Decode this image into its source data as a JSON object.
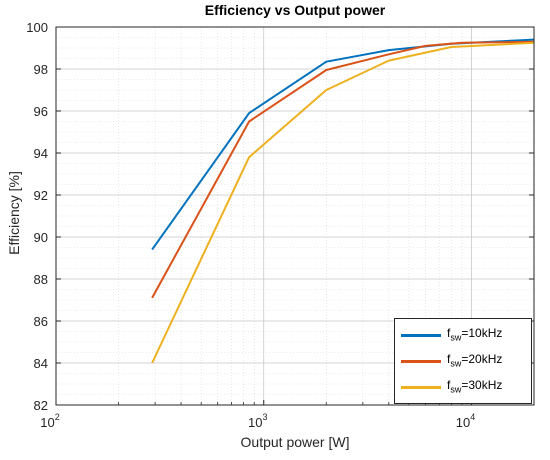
{
  "chart_data": {
    "type": "line",
    "title": "Efficiency vs Output power",
    "xlabel": "Output power [W]",
    "ylabel": "Efficiency [%]",
    "xscale": "log",
    "xlim": [
      100,
      20000
    ],
    "ylim": [
      82,
      100
    ],
    "grid": true,
    "minor_grid": true,
    "legend_position": "bottom-right",
    "x_tick_labels": [
      {
        "base": "10",
        "exp": "2"
      },
      {
        "base": "10",
        "exp": "3"
      },
      {
        "base": "10",
        "exp": "4"
      }
    ],
    "y_tick_labels": [
      "82",
      "84",
      "86",
      "88",
      "90",
      "92",
      "94",
      "96",
      "98",
      "100"
    ],
    "series": [
      {
        "name": "f_sw=10kHz",
        "legend_base": "f",
        "legend_sub": "sw",
        "legend_rest": "=10kHz",
        "color": "#0072BD",
        "x": [
          290,
          850,
          2000,
          4000,
          8000,
          20000
        ],
        "y": [
          89.4,
          95.9,
          98.35,
          98.9,
          99.2,
          99.4
        ]
      },
      {
        "name": "f_sw=20kHz",
        "legend_base": "f",
        "legend_sub": "sw",
        "legend_rest": "=20kHz",
        "color": "#D95319",
        "x": [
          290,
          850,
          2000,
          4000,
          6000,
          9000,
          20000
        ],
        "y": [
          87.1,
          95.5,
          97.95,
          98.7,
          99.1,
          99.25,
          99.3
        ]
      },
      {
        "name": "f_sw=30kHz",
        "legend_base": "f",
        "legend_sub": "sw",
        "legend_rest": "=30kHz",
        "color": "#EDB120",
        "x": [
          290,
          850,
          2000,
          4000,
          8000,
          20000
        ],
        "y": [
          84.0,
          93.8,
          97.0,
          98.4,
          99.05,
          99.25
        ]
      }
    ]
  }
}
